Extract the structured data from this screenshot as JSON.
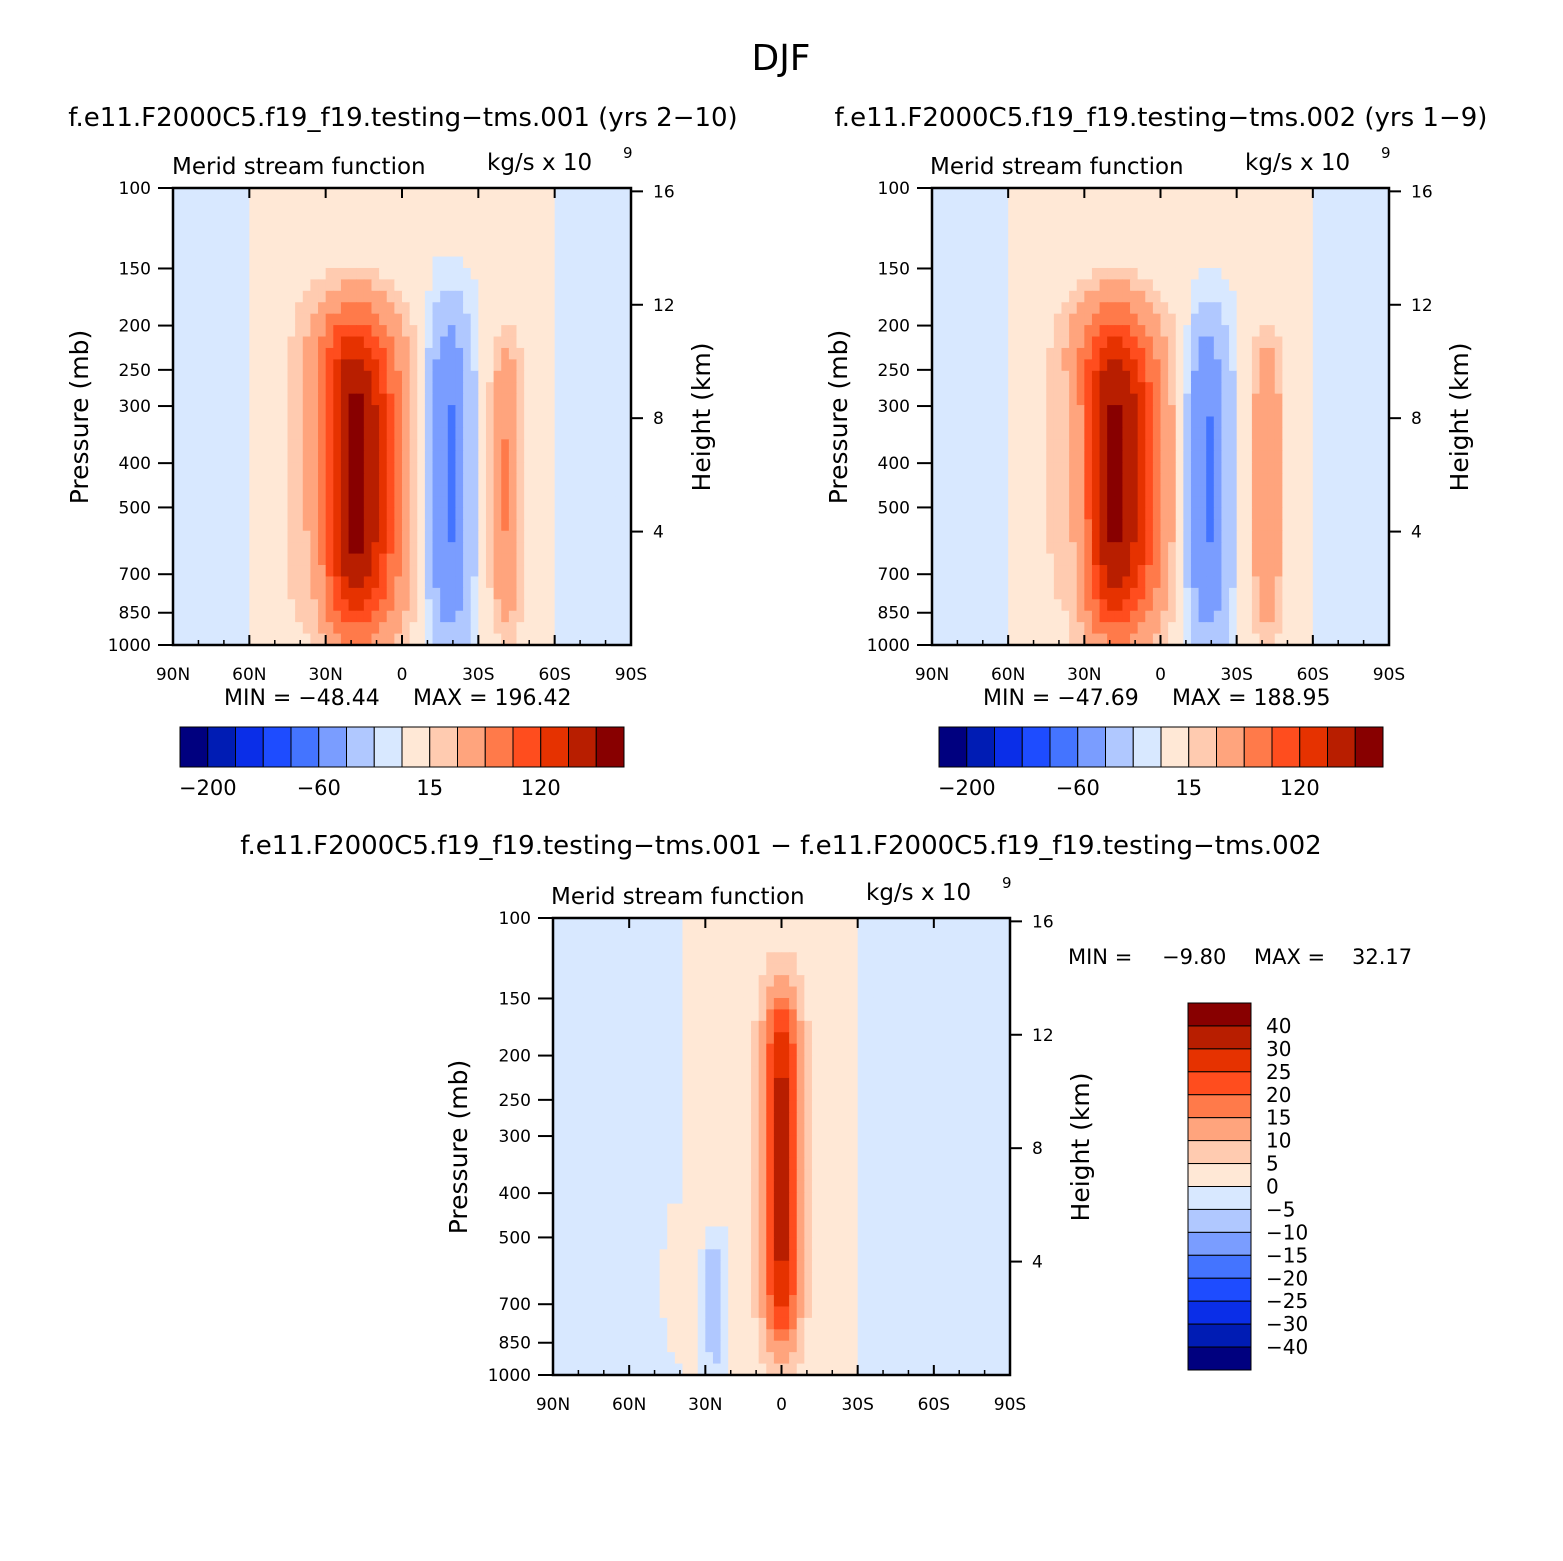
{
  "figure": {
    "title": "DJF"
  },
  "legend_colors": [
    "#00007f",
    "#001cb4",
    "#0a2ee8",
    "#1e4cff",
    "#4474ff",
    "#7a9dff",
    "#b0c8ff",
    "#d8e8ff",
    "#ffe8d6",
    "#ffcbb0",
    "#ffa47d",
    "#ff7a4a",
    "#ff4d1e",
    "#e63200",
    "#b81e00",
    "#880000"
  ],
  "chart_data": [
    {
      "type": "heatmap",
      "id": "panel1",
      "title": "f.e11.F2000C5.f19_f19.testing−tms.001 (yrs 2−10)",
      "left_label": "Merid stream function",
      "units_label": "kg/s x 10",
      "units_exp": "9",
      "ylabel": "Pressure (mb)",
      "ylabel_right": "Height (km)",
      "xlabel": "",
      "xticks": [
        "90N",
        "60N",
        "30N",
        "0",
        "30S",
        "60S",
        "90S"
      ],
      "xlim": [
        90,
        -90
      ],
      "yticks": [
        "100",
        "150",
        "200",
        "250",
        "300",
        "400",
        "500",
        "700",
        "850",
        "1000"
      ],
      "yticks_values": [
        100,
        150,
        200,
        250,
        300,
        400,
        500,
        700,
        850,
        1000
      ],
      "ylim": [
        1000,
        100
      ],
      "height_ticks": [
        "16",
        "12",
        "8",
        "4"
      ],
      "height_ticks_values": [
        16,
        12,
        8,
        4
      ],
      "min_label": "MIN = −48.44",
      "max_label": "MAX = 196.42",
      "min": -48.44,
      "max": 196.42,
      "colorbar": {
        "orientation": "horizontal",
        "tick_labels": [
          "−200",
          "−60",
          "15",
          "120"
        ]
      },
      "features": [
        {
          "lat": 19,
          "p_top": 185,
          "p_bot": 960,
          "width": 17,
          "peak": 196.42,
          "sign": 1
        },
        {
          "lat": 32,
          "p_top": 230,
          "p_bot": 920,
          "width": 8,
          "peak": -48.44,
          "sign": -1
        },
        {
          "lat": -18,
          "p_top": 190,
          "p_bot": 955,
          "width": 8,
          "peak": -45,
          "sign": -1
        },
        {
          "lat": -41,
          "p_top": 210,
          "p_bot": 950,
          "width": 6,
          "peak": 60,
          "sign": 1
        }
      ]
    },
    {
      "type": "heatmap",
      "id": "panel2",
      "title": "f.e11.F2000C5.f19_f19.testing−tms.002 (yrs 1−9)",
      "left_label": "Merid stream function",
      "units_label": "kg/s x 10",
      "units_exp": "9",
      "ylabel": "Pressure (mb)",
      "ylabel_right": "Height (km)",
      "xticks": [
        "90N",
        "60N",
        "30N",
        "0",
        "30S",
        "60S",
        "90S"
      ],
      "xlim": [
        90,
        -90
      ],
      "yticks": [
        "100",
        "150",
        "200",
        "250",
        "300",
        "400",
        "500",
        "700",
        "850",
        "1000"
      ],
      "yticks_values": [
        100,
        150,
        200,
        250,
        300,
        400,
        500,
        700,
        850,
        1000
      ],
      "ylim": [
        1000,
        100
      ],
      "height_ticks": [
        "16",
        "12",
        "8",
        "4"
      ],
      "height_ticks_values": [
        16,
        12,
        8,
        4
      ],
      "min_label": "MIN = −47.69",
      "max_label": "MAX = 188.95",
      "min": -47.69,
      "max": 188.95,
      "colorbar": {
        "orientation": "horizontal",
        "tick_labels": [
          "−200",
          "−60",
          "15",
          "120"
        ]
      },
      "features": [
        {
          "lat": 18,
          "p_top": 185,
          "p_bot": 960,
          "width": 17,
          "peak": 188.95,
          "sign": 1
        },
        {
          "lat": 32,
          "p_top": 240,
          "p_bot": 920,
          "width": 8,
          "peak": -47.69,
          "sign": -1
        },
        {
          "lat": -18,
          "p_top": 200,
          "p_bot": 955,
          "width": 8,
          "peak": -45,
          "sign": -1
        },
        {
          "lat": -42,
          "p_top": 210,
          "p_bot": 950,
          "width": 6,
          "peak": 60,
          "sign": 1
        }
      ]
    },
    {
      "type": "heatmap",
      "id": "panel3",
      "title": "f.e11.F2000C5.f19_f19.testing−tms.001 − f.e11.F2000C5.f19_f19.testing−tms.002",
      "left_label": "Merid stream function",
      "units_label": "kg/s x 10",
      "units_exp": "9",
      "ylabel": "Pressure (mb)",
      "ylabel_right": "Height (km)",
      "xticks": [
        "90N",
        "60N",
        "30N",
        "0",
        "30S",
        "60S",
        "90S"
      ],
      "xlim": [
        90,
        -90
      ],
      "yticks": [
        "100",
        "150",
        "200",
        "250",
        "300",
        "400",
        "500",
        "700",
        "850",
        "1000"
      ],
      "yticks_values": [
        100,
        150,
        200,
        250,
        300,
        400,
        500,
        700,
        850,
        1000
      ],
      "ylim": [
        1000,
        100
      ],
      "height_ticks": [
        "16",
        "12",
        "8",
        "4"
      ],
      "height_ticks_values": [
        16,
        12,
        8,
        4
      ],
      "min_label": "MIN =",
      "min_value_label": "−9.80",
      "max_label": "MAX =",
      "max_value_label": "32.17",
      "min": -9.8,
      "max": 32.17,
      "colorbar": {
        "orientation": "vertical",
        "tick_labels": [
          "40",
          "30",
          "25",
          "20",
          "15",
          "10",
          "5",
          "0",
          "−5",
          "−10",
          "−15",
          "−20",
          "−25",
          "−30",
          "−40"
        ]
      },
      "features": [
        {
          "lat": 0,
          "p_top": 140,
          "p_bot": 900,
          "width": 8,
          "peak": 32.17,
          "sign": 1
        },
        {
          "lat": 27,
          "p_top": 500,
          "p_bot": 990,
          "width": 5,
          "peak": -9.8,
          "sign": -1
        },
        {
          "lat": 40,
          "p_top": 400,
          "p_bot": 980,
          "width": 8,
          "peak": 4,
          "sign": 1
        }
      ]
    }
  ]
}
